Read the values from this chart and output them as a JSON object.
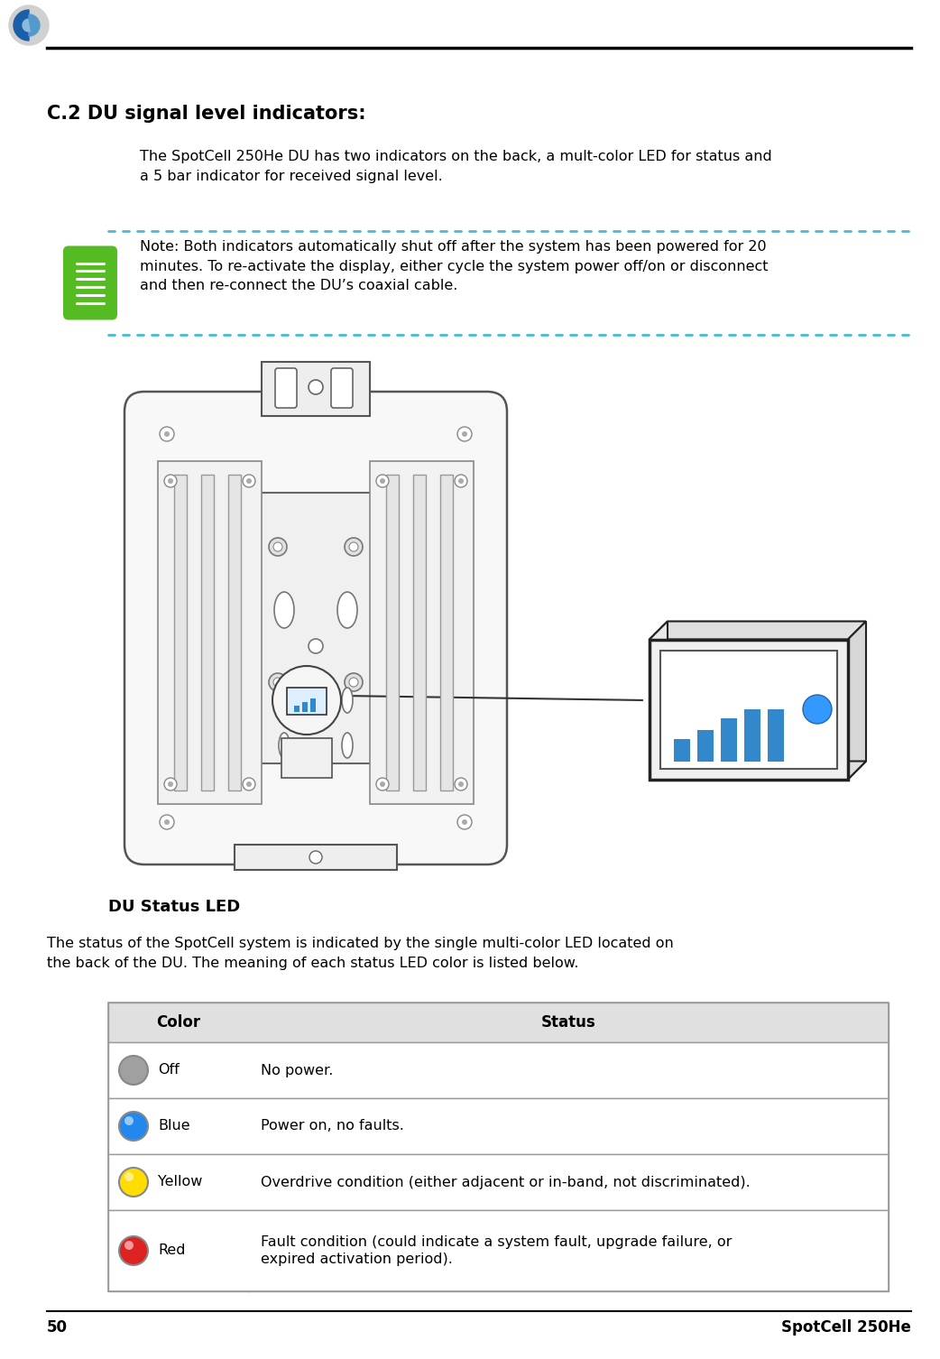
{
  "page_number": "50",
  "page_right_text": "SpotCell 250He",
  "section_title": "C.2 DU signal level indicators:",
  "intro_text": "The SpotCell 250He DU has two indicators on the back, a mult-color LED for status and\na 5 bar indicator for received signal level.",
  "note_text": "Note: Both indicators automatically shut off after the system has been powered for 20\nminutes. To re-activate the display, either cycle the system power off/on or disconnect\nand then re-connect the DU’s coaxial cable.",
  "du_status_title": "DU Status LED",
  "du_status_text": "The status of the SpotCell system is indicated by the single multi-color LED located on\nthe back of the DU. The meaning of each status LED color is listed below.",
  "table_headers": [
    "Color",
    "Status"
  ],
  "table_rows": [
    {
      "color_name": "Off",
      "color_hex": "#a0a0a0",
      "status": "No power."
    },
    {
      "color_name": "Blue",
      "color_hex": "#2288ee",
      "status": "Power on, no faults."
    },
    {
      "color_name": "Yellow",
      "color_hex": "#ffdd00",
      "status": "Overdrive condition (either adjacent or in-band, not discriminated)."
    },
    {
      "color_name": "Red",
      "color_hex": "#dd2222",
      "status": "Fault condition (could indicate a system fault, upgrade failure, or\nexpired activation period)."
    }
  ],
  "note_border_color": "#44bbdd",
  "bg_color": "#ffffff",
  "text_color": "#000000",
  "table_border_color": "#999999",
  "table_header_bg": "#e0e0e0",
  "bar_color": "#3388cc",
  "led_color": "#3399ff"
}
